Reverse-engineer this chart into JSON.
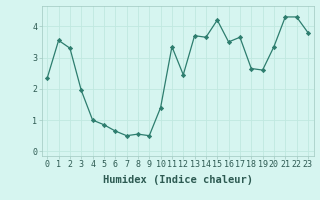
{
  "x": [
    0,
    1,
    2,
    3,
    4,
    5,
    6,
    7,
    8,
    9,
    10,
    11,
    12,
    13,
    14,
    15,
    16,
    17,
    18,
    19,
    20,
    21,
    22,
    23
  ],
  "y": [
    2.35,
    3.55,
    3.3,
    1.95,
    1.0,
    0.85,
    0.65,
    0.5,
    0.55,
    0.5,
    1.4,
    3.35,
    2.45,
    3.7,
    3.65,
    4.2,
    3.5,
    3.65,
    2.65,
    2.6,
    3.35,
    4.3,
    4.3,
    3.8
  ],
  "xlabel": "Humidex (Indice chaleur)",
  "ylim": [
    -0.15,
    4.65
  ],
  "xlim": [
    -0.5,
    23.5
  ],
  "yticks": [
    0,
    1,
    2,
    3,
    4
  ],
  "xticks": [
    0,
    1,
    2,
    3,
    4,
    5,
    6,
    7,
    8,
    9,
    10,
    11,
    12,
    13,
    14,
    15,
    16,
    17,
    18,
    19,
    20,
    21,
    22,
    23
  ],
  "line_color": "#2d7d6e",
  "marker_color": "#2d7d6e",
  "bg_color": "#d6f5f0",
  "grid_color": "#c0e8e0",
  "xlabel_fontsize": 7.5,
  "tick_fontsize": 6.0
}
